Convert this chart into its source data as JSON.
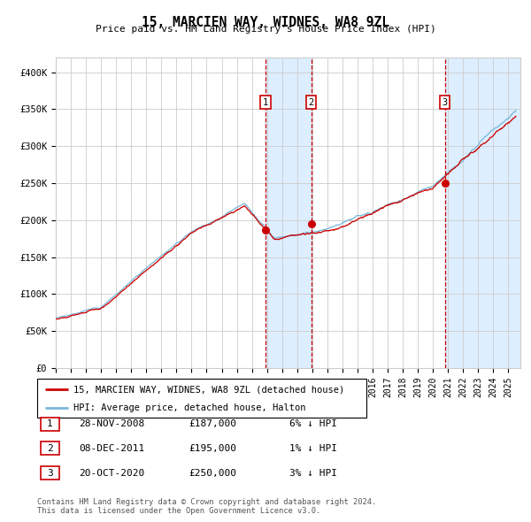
{
  "title": "15, MARCIEN WAY, WIDNES, WA8 9ZL",
  "subtitle": "Price paid vs. HM Land Registry's House Price Index (HPI)",
  "legend_line1": "15, MARCIEN WAY, WIDNES, WA8 9ZL (detached house)",
  "legend_line2": "HPI: Average price, detached house, Halton",
  "transactions": [
    {
      "num": 1,
      "date": "28-NOV-2008",
      "price": 187000,
      "pct": "6%",
      "dir": "↓",
      "year": 2008.91
    },
    {
      "num": 2,
      "date": "08-DEC-2011",
      "price": 195000,
      "pct": "1%",
      "dir": "↓",
      "year": 2011.93
    },
    {
      "num": 3,
      "date": "20-OCT-2020",
      "price": 250000,
      "pct": "3%",
      "dir": "↓",
      "year": 2020.79
    }
  ],
  "footnote": "Contains HM Land Registry data © Crown copyright and database right 2024.\nThis data is licensed under the Open Government Licence v3.0.",
  "hpi_color": "#7ab8d9",
  "price_color": "#cc0000",
  "highlight_color": "#ddeeff",
  "vline_color": "#cc0000",
  "grid_color": "#cccccc",
  "bg_color": "#ffffff",
  "ylim": [
    0,
    420000
  ],
  "yticks": [
    0,
    50000,
    100000,
    150000,
    200000,
    250000,
    300000,
    350000,
    400000
  ],
  "xlim_start": 1995.0,
  "xlim_end": 2025.8
}
